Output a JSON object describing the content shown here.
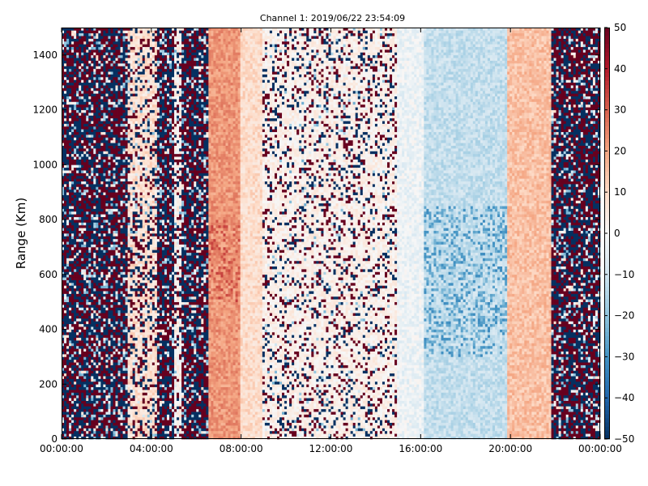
{
  "chart_data": {
    "type": "heatmap",
    "title": "Channel 1: 2019/06/22 23:54:09",
    "xlabel": "",
    "ylabel": "Range (Km)",
    "x_ticks": [
      "00:00:00",
      "04:00:00",
      "08:00:00",
      "12:00:00",
      "16:00:00",
      "20:00:00",
      "00:00:00"
    ],
    "x_range_hours": [
      0,
      24
    ],
    "y_ticks": [
      "0",
      "200",
      "400",
      "600",
      "800",
      "1000",
      "1200",
      "1400"
    ],
    "ylim": [
      0,
      1500
    ],
    "colorbar": {
      "ticks": [
        "50",
        "40",
        "30",
        "20",
        "10",
        "0",
        "−10",
        "−20",
        "−30",
        "−40",
        "−50"
      ],
      "range": [
        -50,
        50
      ],
      "colormap": [
        "#053061",
        "#2166ac",
        "#4393c3",
        "#92c5de",
        "#d1e5f0",
        "#f7f7f7",
        "#fddbc7",
        "#f4a582",
        "#d6604d",
        "#b2182b",
        "#67001f"
      ]
    },
    "grid": false,
    "regions": [
      {
        "start_hour": 0.0,
        "end_hour": 3.0,
        "pattern": "noise"
      },
      {
        "start_hour": 3.0,
        "end_hour": 4.3,
        "pattern": "mixed",
        "mean": 8
      },
      {
        "start_hour": 4.3,
        "end_hour": 5.0,
        "pattern": "noise"
      },
      {
        "start_hour": 5.0,
        "end_hour": 5.3,
        "pattern": "mixed",
        "mean": 2
      },
      {
        "start_hour": 5.3,
        "end_hour": 6.6,
        "pattern": "noise"
      },
      {
        "start_hour": 6.6,
        "end_hour": 8.0,
        "pattern": "smooth",
        "mean": 22
      },
      {
        "start_hour": 8.0,
        "end_hour": 9.0,
        "pattern": "smooth",
        "mean": 9
      },
      {
        "start_hour": 9.0,
        "end_hour": 15.0,
        "pattern": "sparse_noise",
        "mean": 3
      },
      {
        "start_hour": 15.0,
        "end_hour": 16.2,
        "pattern": "smooth",
        "mean": -3
      },
      {
        "start_hour": 16.2,
        "end_hour": 19.8,
        "pattern": "smooth",
        "mean": -12
      },
      {
        "start_hour": 19.8,
        "end_hour": 21.8,
        "pattern": "smooth",
        "mean": 15
      },
      {
        "start_hour": 21.8,
        "end_hour": 24.0,
        "pattern": "noise"
      }
    ]
  }
}
